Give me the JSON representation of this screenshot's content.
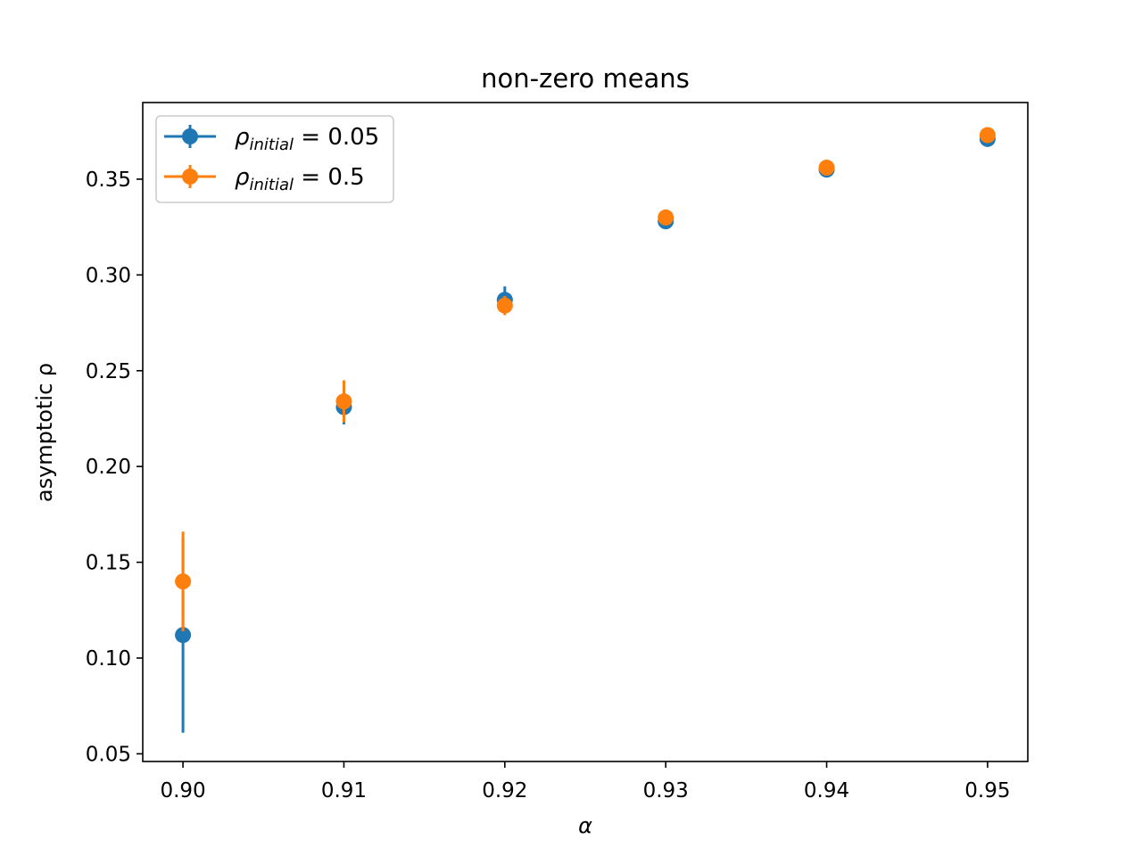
{
  "chart_data": {
    "type": "scatter",
    "title": "non-zero means",
    "xlabel": "α",
    "ylabel": "asymptotic ρ",
    "x": [
      0.9,
      0.91,
      0.92,
      0.93,
      0.94,
      0.95
    ],
    "x_ticks": [
      "0.90",
      "0.91",
      "0.92",
      "0.93",
      "0.94",
      "0.95"
    ],
    "y_ticks": [
      "0.05",
      "0.10",
      "0.15",
      "0.20",
      "0.25",
      "0.30",
      "0.35"
    ],
    "xlim": [
      0.8975,
      0.9525
    ],
    "ylim": [
      0.046,
      0.39
    ],
    "grid": false,
    "legend_position": "top-left",
    "series": [
      {
        "name": "ρinitial = 0.05",
        "legend": {
          "symbol": "ρ",
          "subscript": "initial",
          "value": " = 0.05"
        },
        "color": "#1f77b4",
        "values": [
          0.112,
          0.231,
          0.287,
          0.328,
          0.355,
          0.371
        ],
        "errors": [
          0.051,
          0.009,
          0.007,
          0.002,
          0.002,
          0.002
        ]
      },
      {
        "name": "ρinitial = 0.5",
        "legend": {
          "symbol": "ρ",
          "subscript": "initial",
          "value": " = 0.5"
        },
        "color": "#ff7f0e",
        "values": [
          0.14,
          0.234,
          0.284,
          0.33,
          0.356,
          0.373
        ],
        "errors": [
          0.026,
          0.011,
          0.005,
          0.002,
          0.002,
          0.002
        ]
      }
    ]
  }
}
